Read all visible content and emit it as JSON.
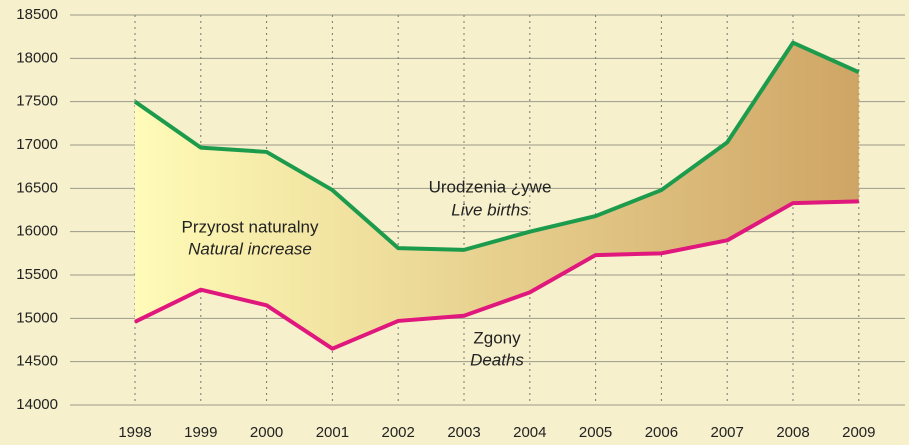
{
  "chart_data": {
    "type": "line",
    "categories": [
      "1998",
      "1999",
      "2000",
      "2001",
      "2002",
      "2003",
      "2004",
      "2005",
      "2006",
      "2007",
      "2008",
      "2009"
    ],
    "series": [
      {
        "name": "Urodzenia ¿ywe",
        "color": "#1d9b4c",
        "values": [
          17500,
          16970,
          16920,
          16480,
          15810,
          15790,
          16000,
          16180,
          16480,
          17030,
          18180,
          17840
        ]
      },
      {
        "name": "Zgony",
        "color": "#e0177c",
        "values": [
          14960,
          15330,
          15150,
          14650,
          14970,
          15030,
          15300,
          15730,
          15750,
          15900,
          16330,
          16350
        ]
      }
    ],
    "annotations": [
      "Urodzenia ¿ywe",
      "Live births",
      "Przyrost naturalny",
      "Natural increase",
      "Zgony",
      "Deaths"
    ],
    "ylim": [
      14000,
      18500
    ],
    "yticks": [
      14000,
      14500,
      15000,
      15500,
      16000,
      16500,
      17000,
      17500,
      18000,
      18500
    ],
    "grid": true
  }
}
